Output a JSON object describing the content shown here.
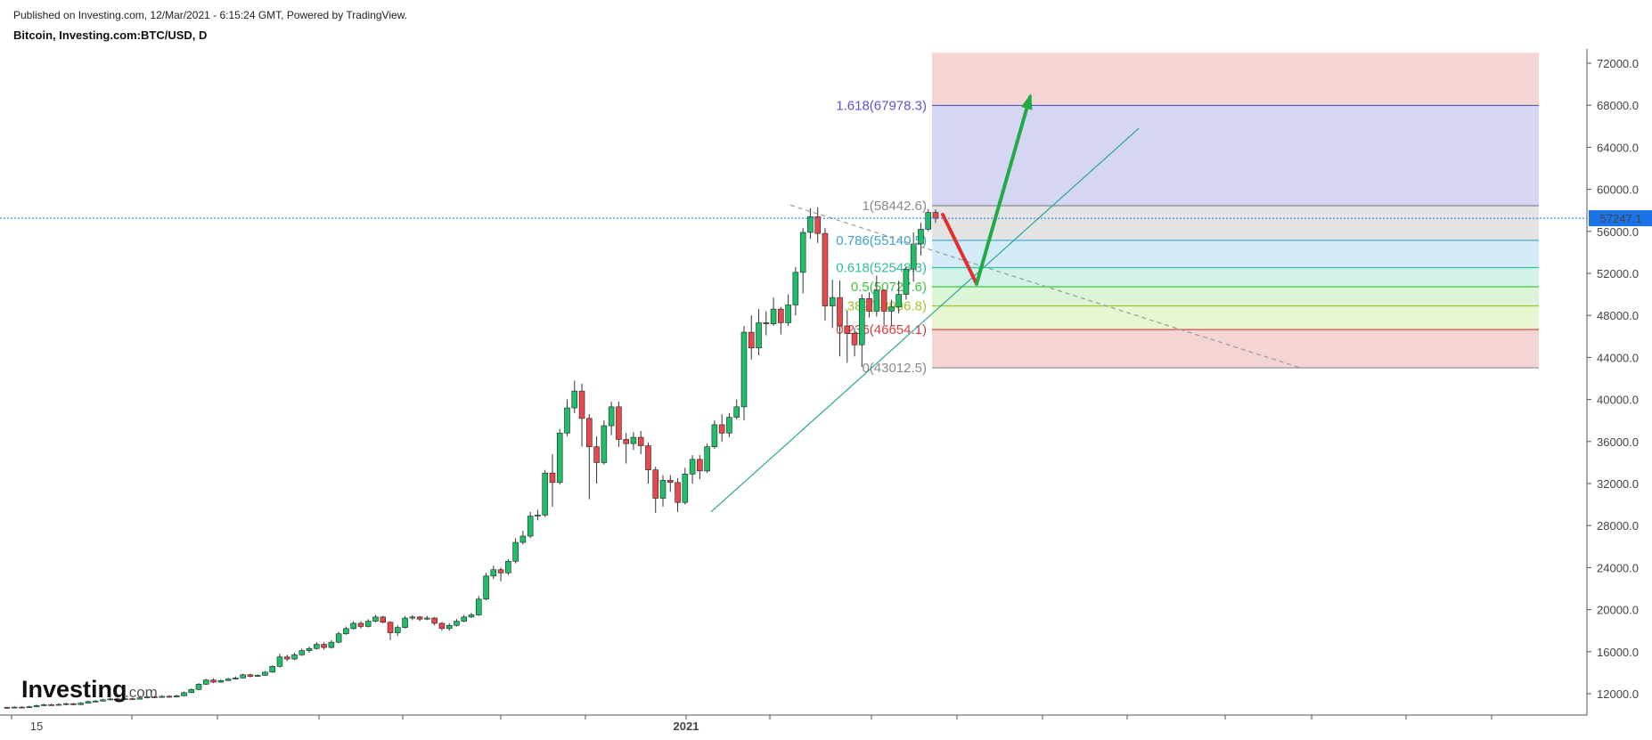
{
  "header": {
    "published": "Published on Investing.com, 12/Mar/2021 - 6:15:24 GMT, Powered by TradingView.",
    "symbol": "Bitcoin, Investing.com:BTC/USD, D"
  },
  "logo": {
    "brand": "Investing",
    "suffix": ".com"
  },
  "chart_data": {
    "type": "candlestick",
    "symbol": "BTC/USD",
    "interval": "D",
    "y_axis": {
      "ticks": [
        "72000.0",
        "68000.0",
        "64000.0",
        "60000.0",
        "56000.0",
        "52000.0",
        "48000.0",
        "44000.0",
        "40000.0",
        "36000.0",
        "32000.0",
        "28000.0",
        "24000.0",
        "20000.0",
        "16000.0",
        "12000.0"
      ],
      "range": [
        9200,
        73200
      ]
    },
    "x_axis": {
      "labels": [
        "15",
        "2021"
      ]
    },
    "last_price": {
      "value": 57247.1,
      "label": "57247.1",
      "color": "#1a73e8"
    },
    "fib_extension": {
      "levels": [
        {
          "ratio": "1.618",
          "price": 67978.3,
          "text": "1.618(67978.3)",
          "color": "#5b54d4",
          "fill": "#d4d6f3"
        },
        {
          "ratio": "1",
          "price": 58442.6,
          "text": "1(58442.6)",
          "color": "#8a8a8a",
          "fill": "#e3e3e3"
        },
        {
          "ratio": "0.786",
          "price": 55140.5,
          "text": "0.786(55140.5)",
          "color": "#3ea3d6",
          "fill": "#d4ecf7"
        },
        {
          "ratio": "0.618",
          "price": 52548.3,
          "text": "0.618(52548.3)",
          "color": "#2fbf9a",
          "fill": "#d3f3ea"
        },
        {
          "ratio": "0.5",
          "price": 50727.6,
          "text": "0.5(50727.6)",
          "color": "#3cc43c",
          "fill": "#dcf5d6"
        },
        {
          "ratio": "0.382",
          "price": 48906.8,
          "text": "0.382(48906.8)",
          "color": "#9cc832",
          "fill": "#e9f6d2"
        },
        {
          "ratio": "0.236",
          "price": 46654.1,
          "text": "0.236(46654.1)",
          "color": "#d83c3c",
          "fill": "#f5d5d3"
        },
        {
          "ratio": "0",
          "price": 43012.5,
          "text": "0(43012.5)",
          "color": "#8a8a8a",
          "fill": null
        }
      ],
      "top_band_fill": "#f5d5d3",
      "upper_price": 73000
    },
    "annotations": [
      {
        "type": "trendline",
        "color": "#26a69a",
        "from": [
          798,
          29300
        ],
        "to": [
          1278,
          65800
        ]
      },
      {
        "type": "trendline",
        "color": "#999999",
        "style": "dashed",
        "from": [
          887,
          58500
        ],
        "to": [
          1460,
          43000
        ]
      },
      {
        "type": "arrow",
        "color": "#e62e2e",
        "from": [
          1058,
          57600
        ],
        "to": [
          1096,
          51000
        ]
      },
      {
        "type": "arrow",
        "color": "#22aa44",
        "from": [
          1096,
          51000
        ],
        "to": [
          1156,
          68800
        ]
      }
    ],
    "candles_anchor_x": [
      8,
      1050
    ],
    "candles": [
      [
        10700,
        10650,
        10750,
        10550
      ],
      [
        10650,
        10720,
        10800,
        10600
      ],
      [
        10720,
        10680,
        10800,
        10620
      ],
      [
        10680,
        10760,
        10850,
        10640
      ],
      [
        10760,
        10880,
        10950,
        10700
      ],
      [
        10880,
        10950,
        11050,
        10820
      ],
      [
        10950,
        10900,
        11050,
        10850
      ],
      [
        10900,
        10980,
        11100,
        10880
      ],
      [
        10980,
        11050,
        11150,
        10900
      ],
      [
        11050,
        10960,
        11120,
        10900
      ],
      [
        10960,
        11100,
        11200,
        10920
      ],
      [
        11100,
        11250,
        11350,
        11050
      ],
      [
        11250,
        11300,
        11420,
        11180
      ],
      [
        11300,
        11420,
        11500,
        11250
      ],
      [
        11420,
        11500,
        11600,
        11350
      ],
      [
        11500,
        11450,
        11600,
        11380
      ],
      [
        11450,
        11520,
        11620,
        11400
      ],
      [
        11520,
        11480,
        11600,
        11420
      ],
      [
        11480,
        11600,
        11700,
        11420
      ],
      [
        11600,
        11700,
        11800,
        11550
      ],
      [
        11700,
        11650,
        11800,
        11580
      ],
      [
        11650,
        11750,
        11850,
        11600
      ],
      [
        11750,
        11700,
        11850,
        11620
      ],
      [
        11700,
        11800,
        11900,
        11650
      ],
      [
        11800,
        12100,
        12200,
        11750
      ],
      [
        12100,
        12400,
        12500,
        12050
      ],
      [
        12400,
        12900,
        13000,
        12350
      ],
      [
        12900,
        13300,
        13400,
        12850
      ],
      [
        13300,
        13100,
        13450,
        13000
      ],
      [
        13100,
        13250,
        13350,
        13050
      ],
      [
        13250,
        13400,
        13500,
        13200
      ],
      [
        13400,
        13500,
        13650,
        13350
      ],
      [
        13500,
        13800,
        13900,
        13450
      ],
      [
        13800,
        13650,
        13900,
        13550
      ],
      [
        13650,
        13750,
        13850,
        13600
      ],
      [
        13750,
        14050,
        14150,
        13700
      ],
      [
        14050,
        14600,
        14700,
        14000
      ],
      [
        14600,
        15500,
        15800,
        14500
      ],
      [
        15500,
        15300,
        15700,
        15100
      ],
      [
        15300,
        15700,
        15900,
        15200
      ],
      [
        15700,
        16100,
        16300,
        15600
      ],
      [
        16100,
        16300,
        16500,
        15900
      ],
      [
        16300,
        16700,
        16900,
        16200
      ],
      [
        16700,
        16400,
        16900,
        16200
      ],
      [
        16400,
        16900,
        17100,
        16300
      ],
      [
        16900,
        17700,
        17900,
        16800
      ],
      [
        17700,
        18200,
        18400,
        17600
      ],
      [
        18200,
        18700,
        18900,
        18100
      ],
      [
        18700,
        18400,
        18900,
        18200
      ],
      [
        18400,
        18900,
        19100,
        18300
      ],
      [
        18900,
        19300,
        19500,
        18800
      ],
      [
        19300,
        18800,
        19400,
        18700
      ],
      [
        18800,
        17800,
        18900,
        17100
      ],
      [
        17800,
        18300,
        18500,
        17500
      ],
      [
        18300,
        19200,
        19400,
        18200
      ],
      [
        19200,
        19300,
        19500,
        19000
      ],
      [
        19300,
        19100,
        19400,
        18900
      ],
      [
        19100,
        19200,
        19400,
        19000
      ],
      [
        19200,
        18700,
        19300,
        18500
      ],
      [
        18700,
        18200,
        18800,
        18000
      ],
      [
        18200,
        18500,
        18700,
        18000
      ],
      [
        18500,
        18900,
        19100,
        18400
      ],
      [
        18900,
        19300,
        19500,
        18800
      ],
      [
        19300,
        19500,
        19700,
        19200
      ],
      [
        19500,
        21000,
        21300,
        19400
      ],
      [
        21000,
        23200,
        23500,
        20900
      ],
      [
        23200,
        23800,
        24200,
        22900
      ],
      [
        23800,
        23500,
        24000,
        22700
      ],
      [
        23500,
        24600,
        24800,
        23300
      ],
      [
        24600,
        26400,
        26800,
        24400
      ],
      [
        26400,
        27000,
        27500,
        26200
      ],
      [
        27000,
        28900,
        29300,
        26800
      ],
      [
        28900,
        29000,
        29500,
        28500
      ],
      [
        29000,
        33000,
        33300,
        28800
      ],
      [
        33000,
        32100,
        34800,
        29800
      ],
      [
        32100,
        36800,
        37200,
        31900
      ],
      [
        36800,
        39200,
        40000,
        36500
      ],
      [
        39200,
        40800,
        41800,
        38700
      ],
      [
        40800,
        38200,
        41500,
        35500
      ],
      [
        38200,
        35500,
        38600,
        30500
      ],
      [
        35500,
        34000,
        36500,
        32000
      ],
      [
        34000,
        37500,
        38000,
        33800
      ],
      [
        37500,
        39300,
        39800,
        36600
      ],
      [
        39300,
        36200,
        39800,
        35500
      ],
      [
        36200,
        35800,
        36800,
        33900
      ],
      [
        35800,
        36400,
        36900,
        35200
      ],
      [
        36400,
        35600,
        37000,
        34800
      ],
      [
        35600,
        33300,
        35900,
        32000
      ],
      [
        33300,
        30600,
        33600,
        29200
      ],
      [
        30600,
        32300,
        32800,
        29800
      ],
      [
        32300,
        32100,
        32800,
        31200
      ],
      [
        32100,
        30200,
        32500,
        29300
      ],
      [
        30200,
        32900,
        33500,
        30000
      ],
      [
        32900,
        34300,
        34700,
        32000
      ],
      [
        34300,
        33200,
        34700,
        32400
      ],
      [
        33200,
        35500,
        35800,
        33000
      ],
      [
        35500,
        37600,
        38000,
        35300
      ],
      [
        37600,
        36800,
        38600,
        36000
      ],
      [
        36800,
        38300,
        38700,
        36400
      ],
      [
        38300,
        39300,
        40000,
        38100
      ],
      [
        39300,
        46400,
        47000,
        38000
      ],
      [
        46400,
        44900,
        48000,
        43800
      ],
      [
        44900,
        47300,
        48600,
        44200
      ],
      [
        47300,
        47200,
        48400,
        46100
      ],
      [
        47200,
        48600,
        49700,
        47000
      ],
      [
        48600,
        47300,
        48800,
        46200
      ],
      [
        47300,
        49000,
        50000,
        47000
      ],
      [
        49000,
        52100,
        52600,
        48000
      ],
      [
        52100,
        55900,
        56300,
        50100
      ],
      [
        55900,
        57400,
        58200,
        55300
      ],
      [
        57400,
        55800,
        58300,
        54900
      ],
      [
        55800,
        48900,
        56300,
        47500
      ],
      [
        48900,
        49700,
        51400,
        46800
      ],
      [
        49700,
        47000,
        51300,
        44100
      ],
      [
        47000,
        46300,
        48500,
        43500
      ],
      [
        46300,
        45200,
        46800,
        44100
      ],
      [
        45200,
        49600,
        50000,
        43100
      ],
      [
        49600,
        48400,
        50200,
        47800
      ],
      [
        48400,
        50400,
        51800,
        47900
      ],
      [
        50400,
        48400,
        50500,
        47100
      ],
      [
        48400,
        48800,
        49500,
        47000
      ],
      [
        48800,
        50000,
        51300,
        48200
      ],
      [
        50000,
        52400,
        52600,
        49500
      ],
      [
        52400,
        54800,
        55900,
        51200
      ],
      [
        54800,
        56200,
        56800,
        53700
      ],
      [
        56200,
        57800,
        58100,
        56000
      ],
      [
        57800,
        57250,
        58100,
        56800
      ]
    ]
  }
}
